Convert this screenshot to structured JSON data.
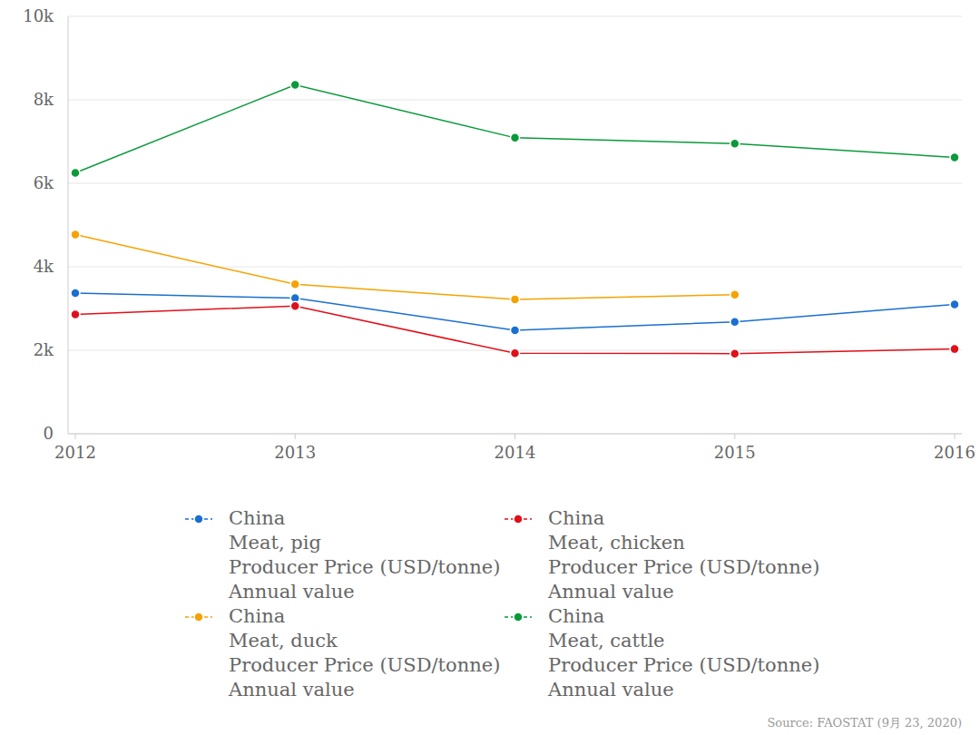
{
  "chart_data": {
    "type": "line",
    "categories": [
      "2012",
      "2013",
      "2014",
      "2015",
      "2016"
    ],
    "series": [
      {
        "name": "China\nMeat, pig\nProducer Price (USD/tonne)\nAnnual value",
        "color": "#1a6fd1",
        "values": [
          3370,
          3250,
          2480,
          2680,
          3100
        ]
      },
      {
        "name": "China\nMeat, chicken\nProducer Price (USD/tonne)\nAnnual value",
        "color": "#e0101a",
        "values": [
          2860,
          3060,
          1930,
          1920,
          2030
        ]
      },
      {
        "name": "China\nMeat, duck\nProducer Price (USD/tonne)\nAnnual value",
        "color": "#f5a300",
        "values": [
          4770,
          3580,
          3220,
          3330,
          null
        ]
      },
      {
        "name": "China\nMeat, cattle\nProducer Price (USD/tonne)\nAnnual value",
        "color": "#0a9a3a",
        "values": [
          6250,
          8360,
          7090,
          6950,
          6620
        ]
      }
    ],
    "ylim": [
      0,
      10000
    ],
    "yticks": [
      0,
      {
        "value": 2000,
        "label": "2k"
      },
      {
        "value": 4000,
        "label": "4k"
      },
      {
        "value": 6000,
        "label": "6k"
      },
      {
        "value": 8000,
        "label": "8k"
      },
      {
        "value": 10000,
        "label": "10k"
      }
    ],
    "grid": true,
    "legend": "bottom",
    "marker": "circle",
    "line_style": "solid",
    "source": "Source: FAOSTAT (9月 23, 2020)"
  }
}
